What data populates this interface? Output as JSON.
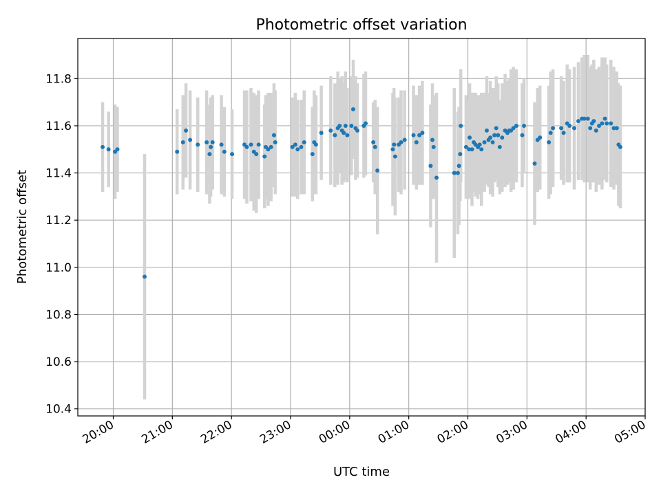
{
  "chart_data": {
    "type": "scatter",
    "title": "Photometric offset variation",
    "xlabel": "UTC time",
    "ylabel": "Photometric offset",
    "x_unit": "hours after 00:00 UTC",
    "xlim": [
      -4.6,
      5.0
    ],
    "ylim": [
      10.37,
      11.97
    ],
    "x_ticks": [
      -4,
      -3,
      -2,
      -1,
      0,
      1,
      2,
      3,
      4,
      5
    ],
    "x_tick_labels": [
      "20:00",
      "21:00",
      "22:00",
      "23:00",
      "00:00",
      "01:00",
      "02:00",
      "03:00",
      "04:00",
      "05:00"
    ],
    "y_ticks": [
      10.4,
      10.6,
      10.8,
      11.0,
      11.2,
      11.4,
      11.6,
      11.8
    ],
    "y_tick_labels": [
      "10.4",
      "10.6",
      "10.8",
      "11.0",
      "11.2",
      "11.4",
      "11.6",
      "11.8"
    ],
    "grid": true,
    "marker_color": "#1f77b4",
    "errorbar_color": "#d3d3d3",
    "points": [
      [
        -4.18,
        11.51,
        0.19
      ],
      [
        -4.08,
        11.5,
        0.16
      ],
      [
        -3.97,
        11.49,
        0.2
      ],
      [
        -3.93,
        11.5,
        0.18
      ],
      [
        -3.47,
        10.96,
        0.52
      ],
      [
        -2.92,
        11.49,
        0.18
      ],
      [
        -2.82,
        11.53,
        0.2
      ],
      [
        -2.77,
        11.58,
        0.2
      ],
      [
        -2.7,
        11.54,
        0.21
      ],
      [
        -2.57,
        11.52,
        0.2
      ],
      [
        -2.42,
        11.53,
        0.22
      ],
      [
        -2.37,
        11.48,
        0.21
      ],
      [
        -2.35,
        11.51,
        0.21
      ],
      [
        -2.32,
        11.53,
        0.2
      ],
      [
        -2.17,
        11.52,
        0.21
      ],
      [
        -2.12,
        11.49,
        0.19
      ],
      [
        -1.99,
        11.48,
        0.19
      ],
      [
        -1.78,
        11.52,
        0.23
      ],
      [
        -1.74,
        11.51,
        0.24
      ],
      [
        -1.67,
        11.52,
        0.24
      ],
      [
        -1.62,
        11.49,
        0.25
      ],
      [
        -1.58,
        11.48,
        0.25
      ],
      [
        -1.54,
        11.52,
        0.23
      ],
      [
        -1.44,
        11.47,
        0.22
      ],
      [
        -1.42,
        11.51,
        0.22
      ],
      [
        -1.38,
        11.5,
        0.24
      ],
      [
        -1.33,
        11.51,
        0.23
      ],
      [
        -1.28,
        11.56,
        0.22
      ],
      [
        -1.26,
        11.53,
        0.22
      ],
      [
        -0.97,
        11.51,
        0.21
      ],
      [
        -0.92,
        11.52,
        0.22
      ],
      [
        -0.88,
        11.5,
        0.21
      ],
      [
        -0.82,
        11.51,
        0.2
      ],
      [
        -0.77,
        11.53,
        0.22
      ],
      [
        -0.63,
        11.48,
        0.2
      ],
      [
        -0.6,
        11.53,
        0.22
      ],
      [
        -0.57,
        11.52,
        0.21
      ],
      [
        -0.48,
        11.57,
        0.2
      ],
      [
        -0.32,
        11.58,
        0.23
      ],
      [
        -0.25,
        11.56,
        0.22
      ],
      [
        -0.2,
        11.59,
        0.24
      ],
      [
        -0.17,
        11.6,
        0.2
      ],
      [
        -0.13,
        11.58,
        0.23
      ],
      [
        -0.1,
        11.57,
        0.21
      ],
      [
        -0.07,
        11.6,
        0.23
      ],
      [
        -0.04,
        11.56,
        0.2
      ],
      [
        0.03,
        11.6,
        0.21
      ],
      [
        0.06,
        11.67,
        0.21
      ],
      [
        0.1,
        11.59,
        0.22
      ],
      [
        0.13,
        11.58,
        0.2
      ],
      [
        0.24,
        11.6,
        0.22
      ],
      [
        0.27,
        11.61,
        0.22
      ],
      [
        0.4,
        11.53,
        0.17
      ],
      [
        0.43,
        11.51,
        0.2
      ],
      [
        0.47,
        11.41,
        0.27
      ],
      [
        0.73,
        11.5,
        0.24
      ],
      [
        0.75,
        11.52,
        0.24
      ],
      [
        0.77,
        11.47,
        0.25
      ],
      [
        0.83,
        11.52,
        0.2
      ],
      [
        0.87,
        11.53,
        0.22
      ],
      [
        0.93,
        11.54,
        0.21
      ],
      [
        1.08,
        11.56,
        0.21
      ],
      [
        1.13,
        11.53,
        0.2
      ],
      [
        1.18,
        11.56,
        0.21
      ],
      [
        1.23,
        11.57,
        0.22
      ],
      [
        1.37,
        11.43,
        0.26
      ],
      [
        1.4,
        11.54,
        0.24
      ],
      [
        1.42,
        11.51,
        0.22
      ],
      [
        1.47,
        11.38,
        0.36
      ],
      [
        1.77,
        11.4,
        0.36
      ],
      [
        1.83,
        11.4,
        0.26
      ],
      [
        1.85,
        11.43,
        0.25
      ],
      [
        1.87,
        11.48,
        0.2
      ],
      [
        1.88,
        11.6,
        0.24
      ],
      [
        1.97,
        11.51,
        0.22
      ],
      [
        2.02,
        11.5,
        0.21
      ],
      [
        2.03,
        11.55,
        0.23
      ],
      [
        2.07,
        11.5,
        0.24
      ],
      [
        2.1,
        11.53,
        0.21
      ],
      [
        2.13,
        11.52,
        0.22
      ],
      [
        2.17,
        11.51,
        0.22
      ],
      [
        2.2,
        11.52,
        0.21
      ],
      [
        2.23,
        11.5,
        0.24
      ],
      [
        2.28,
        11.53,
        0.21
      ],
      [
        2.32,
        11.58,
        0.23
      ],
      [
        2.35,
        11.54,
        0.2
      ],
      [
        2.38,
        11.55,
        0.24
      ],
      [
        2.42,
        11.53,
        0.23
      ],
      [
        2.45,
        11.56,
        0.2
      ],
      [
        2.48,
        11.59,
        0.22
      ],
      [
        2.51,
        11.56,
        0.22
      ],
      [
        2.54,
        11.51,
        0.2
      ],
      [
        2.58,
        11.55,
        0.23
      ],
      [
        2.63,
        11.58,
        0.24
      ],
      [
        2.67,
        11.57,
        0.22
      ],
      [
        2.7,
        11.58,
        0.22
      ],
      [
        2.73,
        11.58,
        0.26
      ],
      [
        2.77,
        11.59,
        0.26
      ],
      [
        2.82,
        11.6,
        0.24
      ],
      [
        2.92,
        11.56,
        0.22
      ],
      [
        2.95,
        11.6,
        0.2
      ],
      [
        3.13,
        11.44,
        0.26
      ],
      [
        3.18,
        11.54,
        0.22
      ],
      [
        3.22,
        11.55,
        0.22
      ],
      [
        3.37,
        11.53,
        0.24
      ],
      [
        3.4,
        11.57,
        0.26
      ],
      [
        3.44,
        11.59,
        0.25
      ],
      [
        3.58,
        11.59,
        0.22
      ],
      [
        3.62,
        11.57,
        0.22
      ],
      [
        3.68,
        11.61,
        0.25
      ],
      [
        3.72,
        11.6,
        0.24
      ],
      [
        3.8,
        11.59,
        0.26
      ],
      [
        3.87,
        11.62,
        0.25
      ],
      [
        3.93,
        11.63,
        0.26
      ],
      [
        3.97,
        11.63,
        0.27
      ],
      [
        4.03,
        11.63,
        0.27
      ],
      [
        4.07,
        11.59,
        0.26
      ],
      [
        4.1,
        11.61,
        0.25
      ],
      [
        4.13,
        11.62,
        0.26
      ],
      [
        4.17,
        11.58,
        0.26
      ],
      [
        4.22,
        11.6,
        0.25
      ],
      [
        4.27,
        11.61,
        0.28
      ],
      [
        4.32,
        11.63,
        0.26
      ],
      [
        4.35,
        11.61,
        0.25
      ],
      [
        4.42,
        11.61,
        0.27
      ],
      [
        4.47,
        11.59,
        0.26
      ],
      [
        4.52,
        11.59,
        0.24
      ],
      [
        4.55,
        11.52,
        0.26
      ],
      [
        4.58,
        11.51,
        0.26
      ]
    ]
  }
}
